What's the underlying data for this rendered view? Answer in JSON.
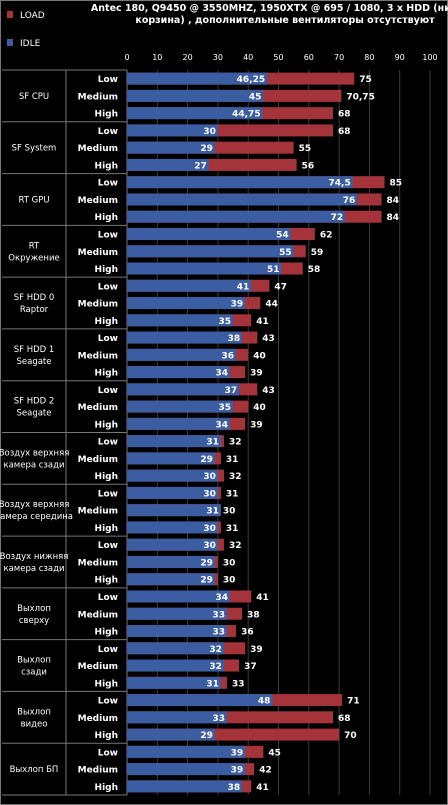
{
  "title_lines": [
    "Antec 180, Q9450 @ 3550MHZ, 1950XTX @ 695 / 1080, 3 x HDD (нижняя",
    "корзина) , дополнительные вентиляторы отсутствуют"
  ],
  "legend": [
    {
      "name": "LOAD",
      "color": "#a4333a"
    },
    {
      "name": "IDLE",
      "color": "#3b5ea3"
    }
  ],
  "chart_data": {
    "type": "bar",
    "orientation": "horizontal",
    "stacking": "overlapped",
    "xlim": [
      0,
      100
    ],
    "xticks": [
      0,
      10,
      20,
      30,
      40,
      50,
      60,
      70,
      80,
      90,
      100
    ],
    "grid": true,
    "legend_position": "top-left",
    "subcategories": [
      "Low",
      "Medium",
      "High"
    ],
    "groups": [
      {
        "name": [
          "SF CPU"
        ],
        "load": [
          "75",
          "70,75",
          "68"
        ],
        "idle": [
          "46,25",
          "45",
          "44,75"
        ]
      },
      {
        "name": [
          "SF System"
        ],
        "load": [
          "68",
          "55",
          "56"
        ],
        "idle": [
          "30",
          "29",
          "27"
        ]
      },
      {
        "name": [
          "RT  GPU"
        ],
        "load": [
          "85",
          "84",
          "84"
        ],
        "idle": [
          "74,5",
          "76",
          "72"
        ]
      },
      {
        "name": [
          "RT",
          "Окружение"
        ],
        "load": [
          "62",
          "59",
          "58"
        ],
        "idle": [
          "54",
          "55",
          "51"
        ]
      },
      {
        "name": [
          "SF HDD 0",
          "Raptor"
        ],
        "load": [
          "47",
          "44",
          "41"
        ],
        "idle": [
          "41",
          "39",
          "35"
        ]
      },
      {
        "name": [
          "SF HDD 1",
          "Seagate"
        ],
        "load": [
          "43",
          "40",
          "39"
        ],
        "idle": [
          "38",
          "36",
          "34"
        ]
      },
      {
        "name": [
          "SF HDD 2",
          "Seagate"
        ],
        "load": [
          "43",
          "40",
          "39"
        ],
        "idle": [
          "37",
          "35",
          "34"
        ]
      },
      {
        "name": [
          "Воздух верхняя",
          "камера сзади"
        ],
        "load": [
          "32",
          "31",
          "32"
        ],
        "idle": [
          "31",
          "29",
          "30"
        ]
      },
      {
        "name": [
          "Воздух верхняя",
          "камера середина"
        ],
        "load": [
          "31",
          "30",
          "31"
        ],
        "idle": [
          "30",
          "31",
          "30"
        ]
      },
      {
        "name": [
          "Воздух нижняя",
          "камера сзади"
        ],
        "load": [
          "32",
          "30",
          "30"
        ],
        "idle": [
          "30",
          "29",
          "29"
        ]
      },
      {
        "name": [
          "Выхлоп",
          "сверху"
        ],
        "load": [
          "41",
          "38",
          "36"
        ],
        "idle": [
          "34",
          "33",
          "33"
        ]
      },
      {
        "name": [
          "Выхлоп",
          "сзади"
        ],
        "load": [
          "39",
          "37",
          "33"
        ],
        "idle": [
          "32",
          "32",
          "31"
        ]
      },
      {
        "name": [
          "Выхлоп",
          "видео"
        ],
        "load": [
          "71",
          "68",
          "70"
        ],
        "idle": [
          "48",
          "33",
          "29"
        ]
      },
      {
        "name": [
          "Выхлоп БП"
        ],
        "load": [
          "45",
          "42",
          "41"
        ],
        "idle": [
          "39",
          "39",
          "38"
        ]
      }
    ]
  }
}
